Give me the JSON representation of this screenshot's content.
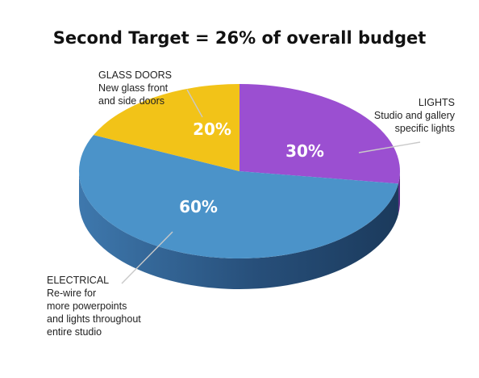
{
  "chart_data": {
    "type": "pie",
    "title": "Second Target = 26% of overall budget",
    "slices": [
      {
        "value": 30,
        "label": "30%",
        "annotation": [
          "LIGHTS",
          "Studio and gallery",
          "specific lights"
        ],
        "color": "#9b4fd1",
        "side_color": "#5f2a88"
      },
      {
        "value": 60,
        "label": "60%",
        "annotation": [
          "ELECTRICAL",
          "Re-wire for",
          "more powerpoints",
          "and lights throughout",
          "entire studio"
        ],
        "color": "#4b93c9",
        "side_color": "#2a5a86"
      },
      {
        "value": 20,
        "label": "20%",
        "annotation": [
          "GLASS DOORS",
          "New glass front",
          "and side doors"
        ],
        "color": "#f2c318",
        "side_color": "#b08a0a"
      }
    ]
  },
  "colors": {
    "background": "#ffffff",
    "title": "#111111",
    "leader": "#c9c9c9"
  }
}
